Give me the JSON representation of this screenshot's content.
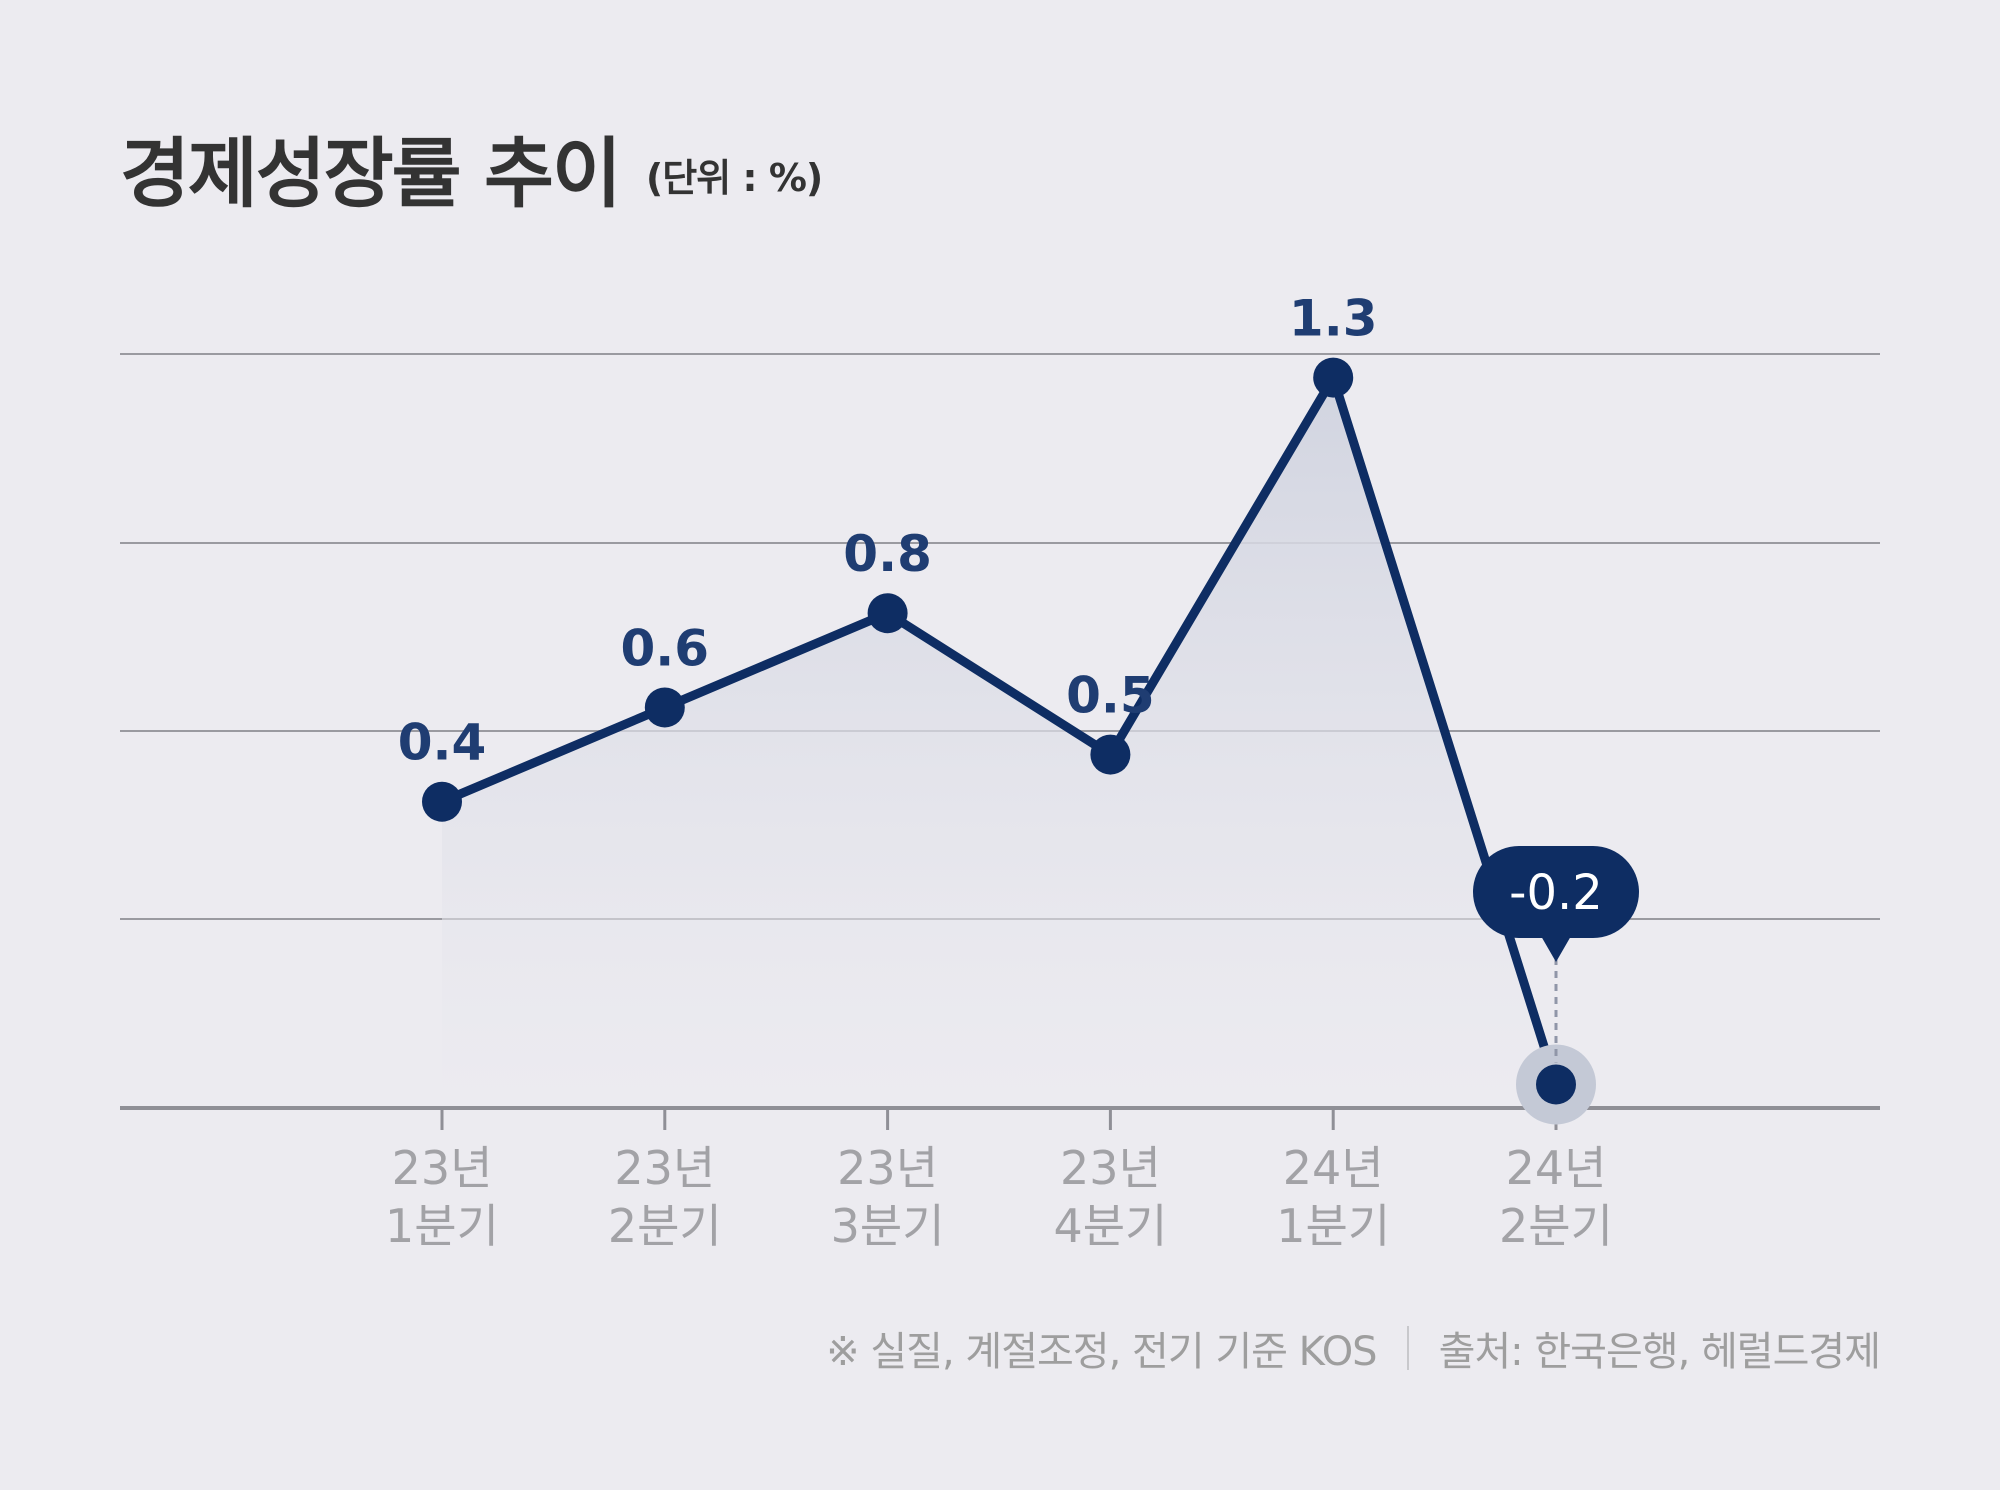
{
  "header": {
    "title": "경제성장률 추이",
    "unit": "(단위 : %)"
  },
  "footer": {
    "note": "※ 실질, 계절조정, 전기 기준 KOS",
    "source": "출처: 한국은행, 헤럴드경제"
  },
  "colors": {
    "line": "#0E2D63",
    "label": "#1F3D72",
    "grid": "#9A9AA0",
    "axis": "#8F8F96",
    "tick_text": "#A2A2A6",
    "background": "#ECEBF0",
    "highlight_halo": "#C4C9D6",
    "area_top": "#D1D4E0",
    "callout_text": "#FFFFFF"
  },
  "chart_data": {
    "type": "line",
    "title": "경제성장률 추이",
    "unit": "%",
    "categories": [
      {
        "year": "23년",
        "quarter": "1분기"
      },
      {
        "year": "23년",
        "quarter": "2분기"
      },
      {
        "year": "23년",
        "quarter": "3분기"
      },
      {
        "year": "23년",
        "quarter": "4분기"
      },
      {
        "year": "24년",
        "quarter": "1분기"
      },
      {
        "year": "24년",
        "quarter": "2분기"
      }
    ],
    "series": [
      {
        "name": "경제성장률",
        "values": [
          0.4,
          0.6,
          0.8,
          0.5,
          1.3,
          -0.2
        ],
        "labels": [
          "0.4",
          "0.6",
          "0.8",
          "0.5",
          "1.3",
          "-0.2"
        ]
      }
    ],
    "highlight_index": 5,
    "ylim": [
      -0.25,
      1.35
    ],
    "grid": true,
    "legend": "none"
  }
}
